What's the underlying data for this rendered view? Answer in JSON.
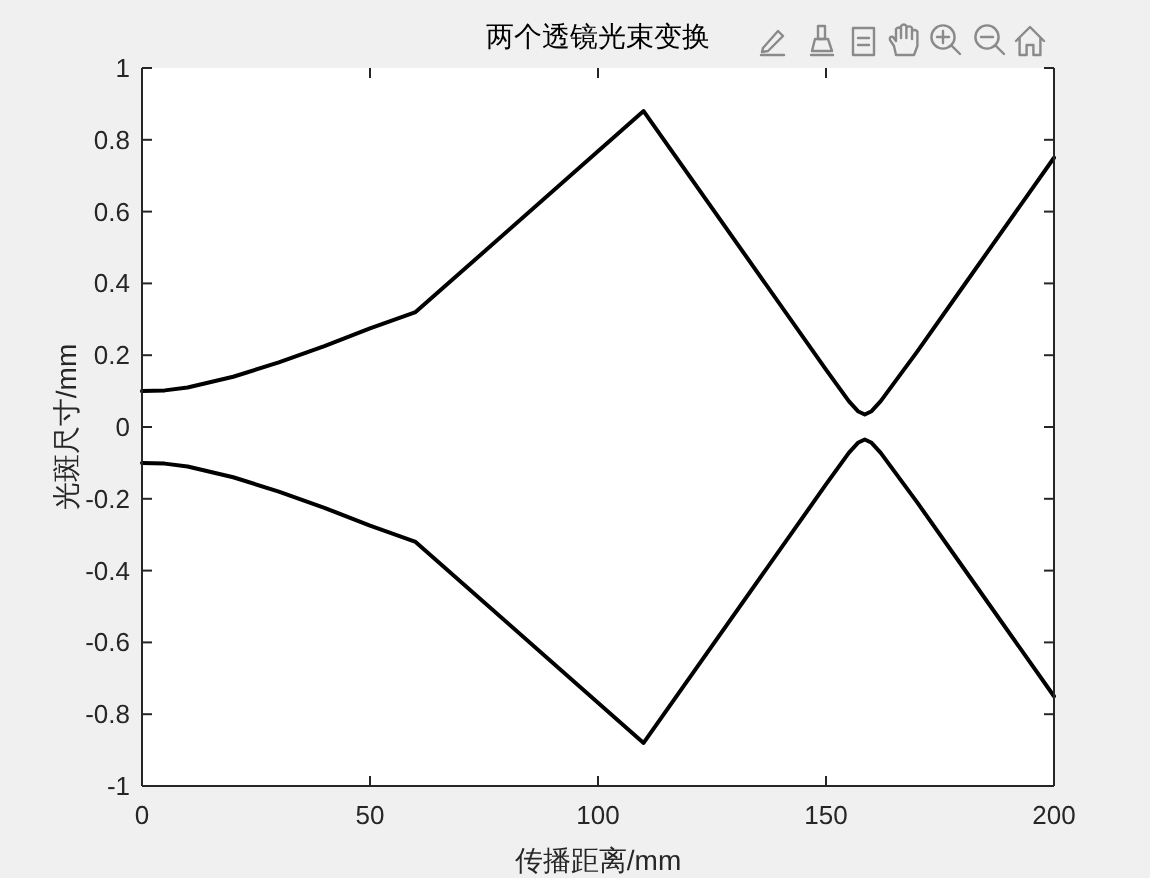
{
  "chart_data": {
    "type": "line",
    "title": "两个透镜光束变换",
    "xlabel": "传播距离/mm",
    "ylabel": "光斑尺寸/mm",
    "x": [
      0,
      5,
      10,
      20,
      30,
      40,
      50,
      60,
      110,
      150,
      155,
      157,
      158.5,
      160,
      162,
      170,
      180,
      200
    ],
    "series": [
      {
        "color": "#000000",
        "values": [
          0.1,
          0.102,
          0.11,
          0.14,
          0.18,
          0.225,
          0.275,
          0.32,
          0.88,
          0.16,
          0.072,
          0.044,
          0.035,
          0.044,
          0.072,
          0.21,
          0.39,
          0.75
        ]
      },
      {
        "color": "#000000",
        "values": [
          -0.1,
          -0.102,
          -0.11,
          -0.14,
          -0.18,
          -0.225,
          -0.275,
          -0.32,
          -0.88,
          -0.16,
          -0.072,
          -0.044,
          -0.035,
          -0.044,
          -0.072,
          -0.21,
          -0.39,
          -0.75
        ]
      }
    ],
    "xlim": [
      0,
      200
    ],
    "ylim": [
      -1,
      1
    ],
    "xticks": [
      0,
      50,
      100,
      150,
      200
    ],
    "yticks": [
      -1,
      -0.8,
      -0.6,
      -0.4,
      -0.2,
      0,
      0.2,
      0.4,
      0.6,
      0.8,
      1
    ]
  }
}
